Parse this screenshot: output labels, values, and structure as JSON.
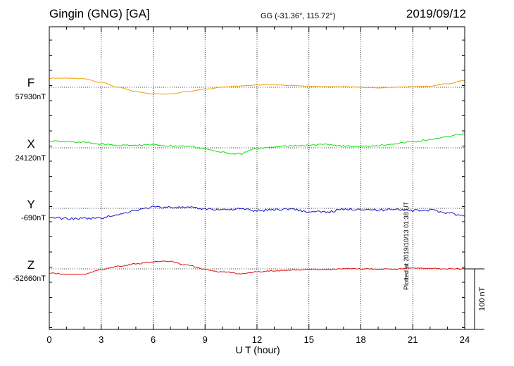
{
  "header": {
    "title": "Gingin (GNG)  [GA]",
    "coords": "GG (-31.36°, 115.72°)",
    "date": "2019/09/12"
  },
  "footer": {
    "plotted": "Plotted at 2019/10/13 01:38 UT"
  },
  "chart_data": {
    "type": "line",
    "title": "Gingin (GNG)  [GA]",
    "xlabel": "U T (hour)",
    "xlim": [
      0,
      24
    ],
    "xticks": [
      "0",
      "3",
      "6",
      "9",
      "12",
      "15",
      "18",
      "21",
      "24"
    ],
    "grid": "dotted",
    "scale_bar": {
      "label": "100 nT",
      "value": 100
    },
    "series": [
      {
        "name": "F",
        "color": "#f0a000",
        "baseline_label": "57930nT",
        "x": [
          0,
          1,
          2,
          3,
          4,
          5,
          6,
          7,
          8,
          9,
          10,
          11,
          12,
          13,
          14,
          15,
          16,
          17,
          18,
          19,
          20,
          21,
          22,
          23,
          24
        ],
        "y": [
          15,
          15,
          14,
          8,
          0,
          -7,
          -11,
          -11,
          -7,
          -3,
          0,
          2,
          4,
          4,
          3,
          2,
          1,
          1,
          0,
          -1,
          0,
          1,
          2,
          6,
          11
        ]
      },
      {
        "name": "X",
        "color": "#10e010",
        "baseline_label": "24120nT",
        "x": [
          0,
          1,
          2,
          3,
          4,
          5,
          6,
          7,
          8,
          9,
          10,
          10.5,
          11,
          12,
          13,
          14,
          15,
          16,
          17,
          18,
          19,
          20,
          21,
          22,
          23,
          24
        ],
        "y": [
          11,
          10,
          9,
          6,
          4,
          4,
          5,
          3,
          3,
          -2,
          -7,
          -10,
          -10,
          -1,
          2,
          3,
          4,
          6,
          3,
          2,
          4,
          7,
          10,
          13,
          19,
          23
        ]
      },
      {
        "name": "Y",
        "color": "#1010d0",
        "baseline_label": "-690nT",
        "x": [
          0,
          1,
          2,
          3,
          4,
          5,
          6,
          7,
          8,
          9,
          10,
          11,
          12,
          13,
          14,
          15,
          16,
          17,
          18,
          19,
          20,
          21,
          22,
          23,
          24
        ],
        "y": [
          -15,
          -17,
          -17,
          -16,
          -10,
          -3,
          2,
          2,
          1,
          -1,
          -2,
          -1,
          -4,
          -2,
          -1,
          -6,
          -6,
          -2,
          -1,
          -3,
          -1,
          -4,
          -3,
          -7,
          -13
        ]
      },
      {
        "name": "Z",
        "color": "#e01010",
        "baseline_label": "-52660nT",
        "x": [
          0,
          1,
          2,
          3,
          4,
          5,
          6,
          7,
          8,
          9,
          10,
          11,
          12,
          13,
          14,
          15,
          16,
          17,
          18,
          19,
          20,
          21,
          22,
          23,
          24
        ],
        "y": [
          -7,
          -9,
          -9,
          -1,
          4,
          8,
          12,
          12,
          6,
          -1,
          -5,
          -8,
          -5,
          -3,
          -2,
          -1,
          -1,
          0,
          0,
          0,
          0,
          1,
          1,
          0,
          0
        ]
      }
    ]
  }
}
